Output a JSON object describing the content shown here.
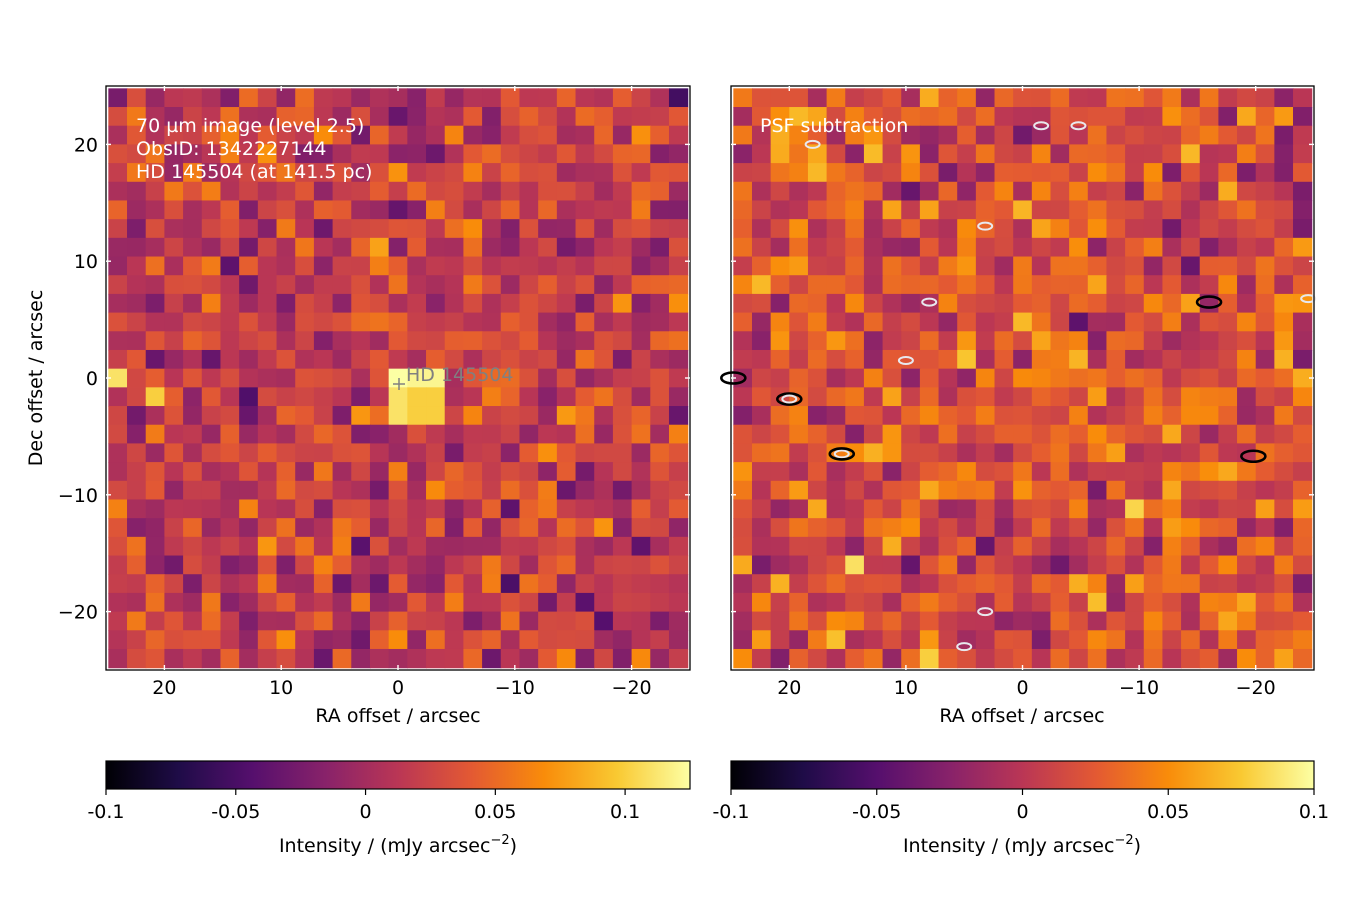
{
  "chart_data": [
    {
      "type": "heatmap",
      "panel": "left",
      "annotations": [
        "70 µm image (level 2.5)",
        "ObsID: 1342227144",
        "HD 145504 (at 141.5 pc)"
      ],
      "source_label": "HD 145504",
      "source_position": {
        "ra": 0,
        "dec": -0.5
      },
      "xlabel": "RA offset / arcsec",
      "ylabel": "Dec offset / arcsec",
      "xlim": [
        25,
        -25
      ],
      "ylim": [
        -25,
        25
      ],
      "xticks": [
        20,
        10,
        0,
        -10,
        -20
      ],
      "xtick_labels": [
        "20",
        "10",
        "0",
        "−10",
        "−20"
      ],
      "yticks": [
        20,
        10,
        0,
        -10,
        -20
      ],
      "ytick_labels": [
        "20",
        "10",
        "0",
        "−10",
        "−20"
      ],
      "grid": false,
      "colormap": "inferno",
      "pixel_size_arcsec": 1.6,
      "image_size": [
        31,
        31
      ],
      "bright_features": [
        {
          "ra": -0.8,
          "dec": -0.8,
          "level": 0.125
        },
        {
          "ra": -2.4,
          "dec": -0.8,
          "level": 0.12
        },
        {
          "ra": -0.8,
          "dec": -2.4,
          "level": 0.11
        },
        {
          "ra": -2.4,
          "dec": -2.4,
          "level": 0.1
        },
        {
          "ra": 20.8,
          "dec": -1.6,
          "level": 0.1
        },
        {
          "ra": 24.0,
          "dec": 0.0,
          "level": 0.11
        }
      ],
      "colorbar": {
        "label": "Intensity / (mJy arcsec",
        "label_exponent": "−2",
        "label_close": ")",
        "range": [
          -0.1,
          0.125
        ],
        "ticks": [
          -0.1,
          -0.05,
          0,
          0.05,
          0.1
        ],
        "tick_labels": [
          "-0.1",
          "-0.05",
          "0",
          "0.05",
          "0.1"
        ]
      }
    },
    {
      "type": "heatmap",
      "panel": "right",
      "annotations": [
        "PSF subtraction"
      ],
      "xlabel": "RA offset / arcsec",
      "xlim": [
        25,
        -25
      ],
      "ylim": [
        -25,
        25
      ],
      "xticks": [
        20,
        10,
        0,
        -10,
        -20
      ],
      "xtick_labels": [
        "20",
        "10",
        "0",
        "−10",
        "−20"
      ],
      "grid": false,
      "colormap": "inferno",
      "pixel_size_arcsec": 1.6,
      "image_size": [
        31,
        31
      ],
      "contours": [
        {
          "ra": 20.0,
          "dec": -1.8,
          "color": "black"
        },
        {
          "ra": 20.0,
          "dec": -1.8,
          "color": "white"
        },
        {
          "ra": 15.5,
          "dec": -6.5,
          "color": "white"
        },
        {
          "ra": 15.5,
          "dec": -6.5,
          "color": "black"
        },
        {
          "ra": -16.0,
          "dec": 6.5,
          "color": "black"
        },
        {
          "ra": -19.8,
          "dec": -6.7,
          "color": "black"
        },
        {
          "ra": 8.0,
          "dec": 6.5,
          "color": "white"
        },
        {
          "ra": 10.0,
          "dec": 1.5,
          "color": "white"
        },
        {
          "ra": 18.0,
          "dec": 20.0,
          "color": "white"
        },
        {
          "ra": -1.6,
          "dec": 21.6,
          "color": "white"
        },
        {
          "ra": -4.8,
          "dec": 21.6,
          "color": "white"
        },
        {
          "ra": 3.2,
          "dec": 13.0,
          "color": "white"
        },
        {
          "ra": 3.2,
          "dec": -20.0,
          "color": "white"
        },
        {
          "ra": 5.0,
          "dec": -23.0,
          "color": "white"
        },
        {
          "ra": 24.8,
          "dec": 0.0,
          "color": "black"
        },
        {
          "ra": -24.5,
          "dec": 6.8,
          "color": "white"
        }
      ],
      "colorbar": {
        "label": "Intensity / (mJy arcsec",
        "label_exponent": "−2",
        "label_close": ")",
        "range": [
          -0.1,
          0.1
        ],
        "ticks": [
          -0.1,
          -0.05,
          0,
          0.05,
          0.1
        ],
        "tick_labels": [
          "-0.1",
          "-0.05",
          "0",
          "0.05",
          "0.1"
        ]
      }
    }
  ]
}
